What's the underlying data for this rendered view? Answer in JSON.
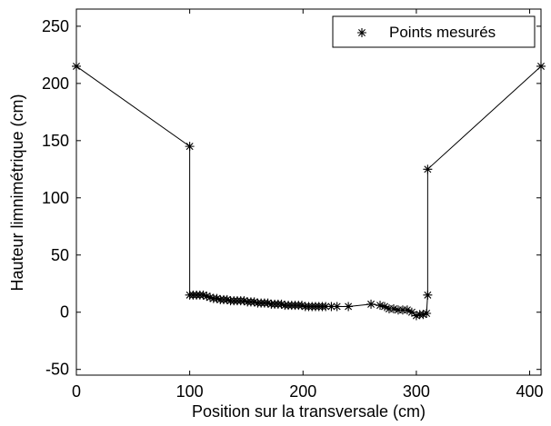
{
  "chart_data": {
    "type": "line",
    "xlabel": "Position sur la transversale (cm)",
    "ylabel": "Hauteur limnimétrique (cm)",
    "xlim": [
      0,
      410
    ],
    "ylim": [
      -55,
      265
    ],
    "xticks": [
      0,
      100,
      200,
      300,
      400
    ],
    "yticks": [
      -50,
      0,
      50,
      100,
      150,
      200,
      250
    ],
    "grid": false,
    "legend": "top-right",
    "colors": {
      "line": "#000000",
      "marker": "#000000"
    },
    "series": [
      {
        "name": "Points mesurés",
        "marker": "star",
        "x": [
          0,
          100,
          100,
          103,
          106,
          109,
          112,
          115,
          118,
          121,
          124,
          127,
          130,
          133,
          136,
          139,
          142,
          145,
          148,
          151,
          154,
          157,
          160,
          163,
          166,
          169,
          172,
          175,
          178,
          181,
          184,
          187,
          190,
          193,
          196,
          199,
          202,
          205,
          208,
          211,
          214,
          217,
          220,
          225,
          230,
          240,
          260,
          268,
          272,
          276,
          280,
          284,
          288,
          292,
          296,
          300,
          303,
          306,
          309,
          310,
          310,
          410
        ],
        "y": [
          215,
          145,
          15,
          15,
          15,
          15,
          15,
          14,
          13,
          12,
          12,
          11,
          11,
          11,
          10,
          10,
          10,
          10,
          10,
          9,
          9,
          9,
          8,
          8,
          8,
          8,
          7,
          7,
          7,
          7,
          6,
          6,
          6,
          6,
          6,
          6,
          5,
          5,
          5,
          5,
          5,
          5,
          5,
          5,
          5,
          5,
          7,
          6,
          5,
          3,
          3,
          2,
          2,
          2,
          0,
          -3,
          -2,
          -2,
          -1,
          15,
          125,
          215
        ]
      }
    ]
  }
}
